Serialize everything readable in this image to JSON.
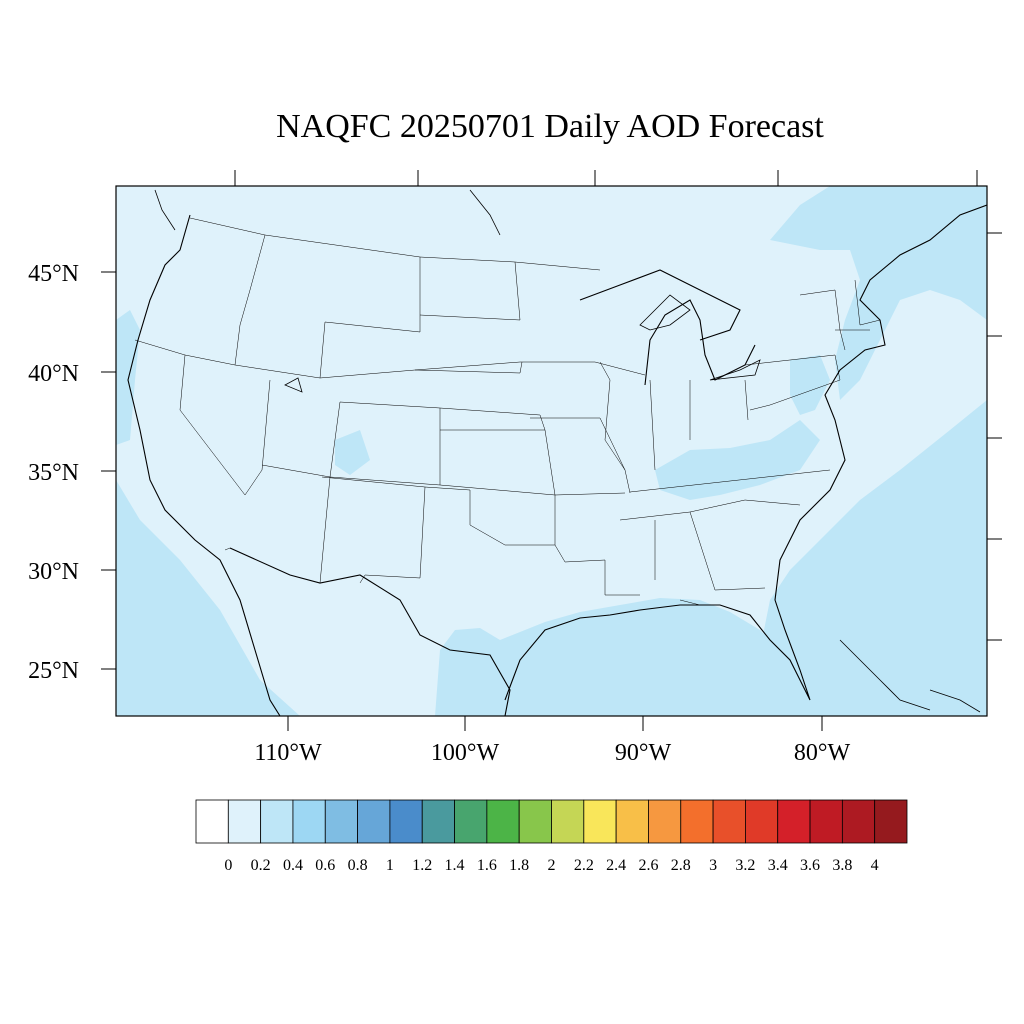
{
  "title": "NAQFC 20250701 Daily AOD Forecast",
  "map": {
    "lat_labels": [
      "45°N",
      "40°N",
      "35°N",
      "30°N",
      "25°N"
    ],
    "lon_labels": [
      "110°W",
      "100°W",
      "90°W",
      "80°W"
    ],
    "background_color": "#dff2fb",
    "ocean_haze_color": "#bee6f7",
    "boundary_color": "#000000"
  },
  "colorbar": {
    "labels": [
      "0",
      "0.2",
      "0.4",
      "0.6",
      "0.8",
      "1",
      "1.2",
      "1.4",
      "1.6",
      "1.8",
      "2",
      "2.2",
      "2.4",
      "2.6",
      "2.8",
      "3",
      "3.2",
      "3.4",
      "3.6",
      "3.8",
      "4"
    ],
    "colors": [
      "#ffffff",
      "#dff2fb",
      "#bee6f7",
      "#9dd7f3",
      "#7fbde3",
      "#66a6d8",
      "#4a8ccb",
      "#4a9a9e",
      "#48a56e",
      "#4cb447",
      "#88c64b",
      "#c5d655",
      "#f9e65a",
      "#f8bf48",
      "#f69840",
      "#f36f2c",
      "#e8502a",
      "#e03a28",
      "#d42029",
      "#bf1b24",
      "#ad1a22",
      "#951a1e"
    ]
  }
}
